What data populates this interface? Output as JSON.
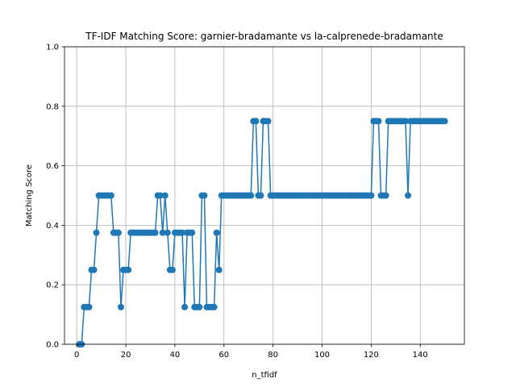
{
  "chart_data": {
    "type": "line",
    "title": "TF-IDF Matching Score: garnier-bradamante vs la-calprenede-bradamante",
    "xlabel": "n_tfidf",
    "ylabel": "Matching Score",
    "xlim": [
      -5,
      158
    ],
    "ylim": [
      0,
      1.0
    ],
    "xticks": [
      0,
      20,
      40,
      60,
      80,
      100,
      120,
      140
    ],
    "yticks": [
      0.0,
      0.2,
      0.4,
      0.6,
      0.8,
      1.0
    ],
    "ytick_labels": [
      "0.0",
      "0.2",
      "0.4",
      "0.6",
      "0.8",
      "1.0"
    ],
    "grid": true,
    "series_color": "#1f77b4",
    "series": [
      {
        "marker": "circle",
        "x": [
          1,
          2,
          3,
          4,
          5,
          6,
          7,
          8,
          9,
          10,
          11,
          12,
          13,
          14,
          15,
          16,
          17,
          18,
          19,
          20,
          21,
          22,
          23,
          24,
          25,
          26,
          27,
          28,
          29,
          30,
          31,
          32,
          33,
          34,
          35,
          36,
          37,
          38,
          39,
          40,
          41,
          42,
          43,
          44,
          45,
          46,
          47,
          48,
          49,
          50,
          51,
          52,
          53,
          54,
          55,
          56,
          57,
          58,
          59,
          60,
          61,
          62,
          63,
          64,
          65,
          66,
          67,
          68,
          69,
          70,
          71,
          72,
          73,
          74,
          75,
          76,
          77,
          78,
          79,
          80,
          81,
          82,
          83,
          84,
          85,
          86,
          87,
          88,
          89,
          90,
          91,
          92,
          93,
          94,
          95,
          96,
          97,
          98,
          99,
          100,
          101,
          102,
          103,
          104,
          105,
          106,
          107,
          108,
          109,
          110,
          111,
          112,
          113,
          114,
          115,
          116,
          117,
          118,
          119,
          120,
          121,
          122,
          123,
          124,
          125,
          126,
          127,
          128,
          129,
          130,
          131,
          132,
          133,
          134,
          135,
          136,
          137,
          138,
          139,
          140,
          141,
          142,
          143,
          144,
          145,
          146,
          147,
          148,
          149,
          150
        ],
        "values": [
          0,
          0,
          0.125,
          0.125,
          0.125,
          0.25,
          0.25,
          0.375,
          0.5,
          0.5,
          0.5,
          0.5,
          0.5,
          0.5,
          0.375,
          0.375,
          0.375,
          0.125,
          0.25,
          0.25,
          0.25,
          0.375,
          0.375,
          0.375,
          0.375,
          0.375,
          0.375,
          0.375,
          0.375,
          0.375,
          0.375,
          0.375,
          0.5,
          0.5,
          0.375,
          0.5,
          0.375,
          0.25,
          0.25,
          0.375,
          0.375,
          0.375,
          0.375,
          0.125,
          0.375,
          0.375,
          0.375,
          0.125,
          0.125,
          0.125,
          0.5,
          0.5,
          0.125,
          0.125,
          0.125,
          0.125,
          0.375,
          0.25,
          0.5,
          0.5,
          0.5,
          0.5,
          0.5,
          0.5,
          0.5,
          0.5,
          0.5,
          0.5,
          0.5,
          0.5,
          0.5,
          0.75,
          0.75,
          0.5,
          0.5,
          0.75,
          0.75,
          0.75,
          0.5,
          0.5,
          0.5,
          0.5,
          0.5,
          0.5,
          0.5,
          0.5,
          0.5,
          0.5,
          0.5,
          0.5,
          0.5,
          0.5,
          0.5,
          0.5,
          0.5,
          0.5,
          0.5,
          0.5,
          0.5,
          0.5,
          0.5,
          0.5,
          0.5,
          0.5,
          0.5,
          0.5,
          0.5,
          0.5,
          0.5,
          0.5,
          0.5,
          0.5,
          0.5,
          0.5,
          0.5,
          0.5,
          0.5,
          0.5,
          0.5,
          0.5,
          0.75,
          0.75,
          0.75,
          0.5,
          0.5,
          0.5,
          0.75,
          0.75,
          0.75,
          0.75,
          0.75,
          0.75,
          0.75,
          0.75,
          0.5,
          0.75,
          0.75,
          0.75,
          0.75,
          0.75,
          0.75,
          0.75,
          0.75,
          0.75,
          0.75,
          0.75,
          0.75,
          0.75,
          0.75,
          0.75
        ]
      }
    ]
  }
}
